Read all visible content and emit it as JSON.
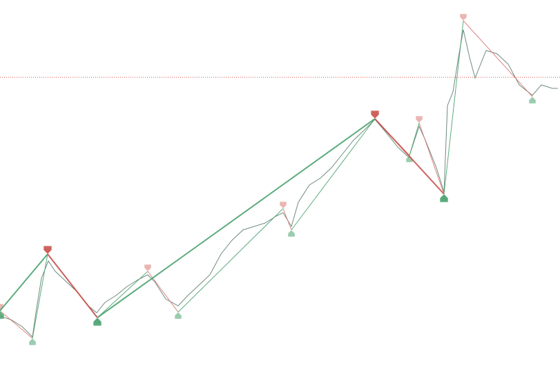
{
  "chart_data": {
    "type": "zigzag",
    "xlim": [
      0,
      202.75
    ],
    "ylim": [
      0,
      533
    ],
    "level": {
      "value": 421,
      "color": "#d04a4a"
    },
    "series": [
      {
        "role": "price",
        "color": "#6f8a80",
        "width": 1,
        "x": [
          0,
          4,
          8,
          11.75,
          13,
          15,
          17.5,
          20,
          24,
          28,
          32,
          35,
          38,
          42,
          46,
          50,
          53.5,
          56,
          60,
          64.5,
          68,
          72,
          76,
          80,
          84,
          88,
          92,
          96,
          100,
          102.5,
          105.5,
          108,
          112,
          116,
          120,
          124,
          128,
          132,
          135.75,
          140,
          144,
          148,
          151.75,
          154,
          158,
          160.75,
          162,
          164,
          166,
          167.75,
          170,
          172,
          176,
          180,
          184,
          188,
          192.75,
          196,
          200,
          202
        ],
        "values": [
          75,
          70,
          60,
          45,
          80,
          130,
          155,
          140,
          125,
          110,
          90,
          80,
          95,
          105,
          118,
          128,
          135,
          125,
          100,
          90,
          105,
          120,
          135,
          165,
          185,
          200,
          205,
          210,
          220,
          225,
          205,
          240,
          265,
          275,
          290,
          310,
          330,
          345,
          360,
          340,
          320,
          305,
          350,
          330,
          290,
          255,
          380,
          400,
          450,
          490,
          450,
          420,
          460,
          455,
          440,
          410,
          395,
          410,
          405,
          405
        ]
      },
      {
        "role": "minor",
        "color": "#d97a74",
        "up_color": "#4aa36f",
        "width": 1,
        "x": [
          0,
          11.75,
          17.25,
          35.25,
          53.5,
          64.5,
          102.5,
          105.5,
          135.75,
          148.25,
          151.75,
          160.75,
          167.75,
          192.75
        ],
        "values": [
          83,
          43,
          165,
          73,
          140,
          81,
          231,
          200,
          361,
          308,
          355,
          252,
          503,
          393
        ]
      },
      {
        "role": "major",
        "color": "#c9544e",
        "up_color": "#4aa36f",
        "width": 2,
        "x": [
          0,
          17.25,
          35.25,
          135.75,
          160.75
        ],
        "values": [
          83,
          165,
          73,
          361,
          252
        ]
      }
    ]
  }
}
